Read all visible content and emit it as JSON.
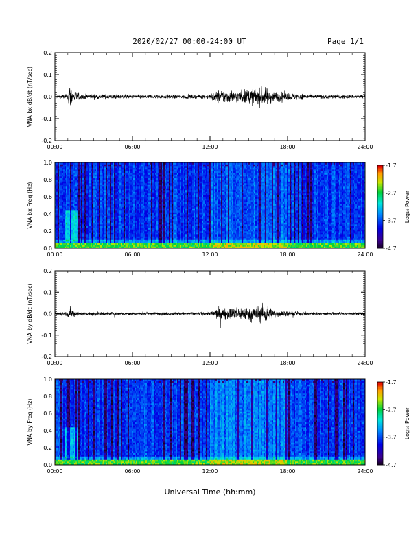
{
  "header": {
    "title": "2020/02/27  00:00-24:00 UT",
    "page": "Page 1/1"
  },
  "footer": {
    "xlabel": "Universal Time (hh:mm)"
  },
  "chart_data": [
    {
      "type": "line",
      "ylabel": "VNA bx dB/dt (nT/sec)",
      "xlim": [
        0,
        24
      ],
      "ylim": [
        -0.2,
        0.2
      ],
      "yticks": [
        "-0.2",
        "-0.1",
        "0.0",
        "0.1",
        "0.2"
      ],
      "xticks": [
        "00:00",
        "06:00",
        "12:00",
        "18:00",
        "24:00"
      ],
      "series": [
        {
          "x": [
            0,
            1,
            1.1,
            1.3,
            2,
            6,
            11.5,
            12,
            12.5,
            14,
            15.5,
            16.2,
            17,
            18,
            20,
            24
          ],
          "amplitude": [
            0.01,
            0.02,
            0.12,
            0.06,
            0.02,
            0.015,
            0.015,
            0.02,
            0.05,
            0.05,
            0.06,
            0.07,
            0.04,
            0.03,
            0.015,
            0.015
          ]
        }
      ]
    },
    {
      "type": "heatmap",
      "ylabel": "VNA bx Freq (Hz)",
      "xlim": [
        0,
        24
      ],
      "ylim": [
        0,
        1
      ],
      "yticks": [
        "0.0",
        "0.2",
        "0.4",
        "0.6",
        "0.8",
        "1.0"
      ],
      "xticks": [
        "00:00",
        "06:00",
        "12:00",
        "18:00",
        "24:00"
      ],
      "colorbar": {
        "label": "Log₁₀ Power",
        "ticks": [
          "-1.7",
          "-2.7",
          "-3.7",
          "-4.7"
        ],
        "range": [
          -4.7,
          -1.7
        ]
      }
    },
    {
      "type": "line",
      "ylabel": "VNA by dB/dt (nT/sec)",
      "xlim": [
        0,
        24
      ],
      "ylim": [
        -0.2,
        0.2
      ],
      "yticks": [
        "-0.2",
        "-0.1",
        "0.0",
        "0.1",
        "0.2"
      ],
      "xticks": [
        "00:00",
        "06:00",
        "12:00",
        "18:00",
        "24:00"
      ],
      "series": [
        {
          "x": [
            0,
            1,
            1.1,
            1.3,
            2,
            6,
            11.5,
            12,
            12.5,
            14,
            15.5,
            16.2,
            17,
            18,
            20,
            24
          ],
          "amplitude": [
            0.01,
            0.02,
            0.06,
            0.03,
            0.015,
            0.012,
            0.012,
            0.015,
            0.04,
            0.05,
            0.06,
            0.08,
            0.03,
            0.02,
            0.012,
            0.012
          ]
        }
      ]
    },
    {
      "type": "heatmap",
      "ylabel": "VNA by Freq (Hz)",
      "xlim": [
        0,
        24
      ],
      "ylim": [
        0,
        1
      ],
      "yticks": [
        "0.0",
        "0.2",
        "0.4",
        "0.6",
        "0.8",
        "1.0"
      ],
      "xticks": [
        "00:00",
        "06:00",
        "12:00",
        "18:00",
        "24:00"
      ],
      "colorbar": {
        "label": "Log₁₀ Power",
        "ticks": [
          "-1.7",
          "-2.7",
          "-3.7",
          "-4.7"
        ],
        "range": [
          -4.7,
          -1.7
        ]
      }
    }
  ]
}
